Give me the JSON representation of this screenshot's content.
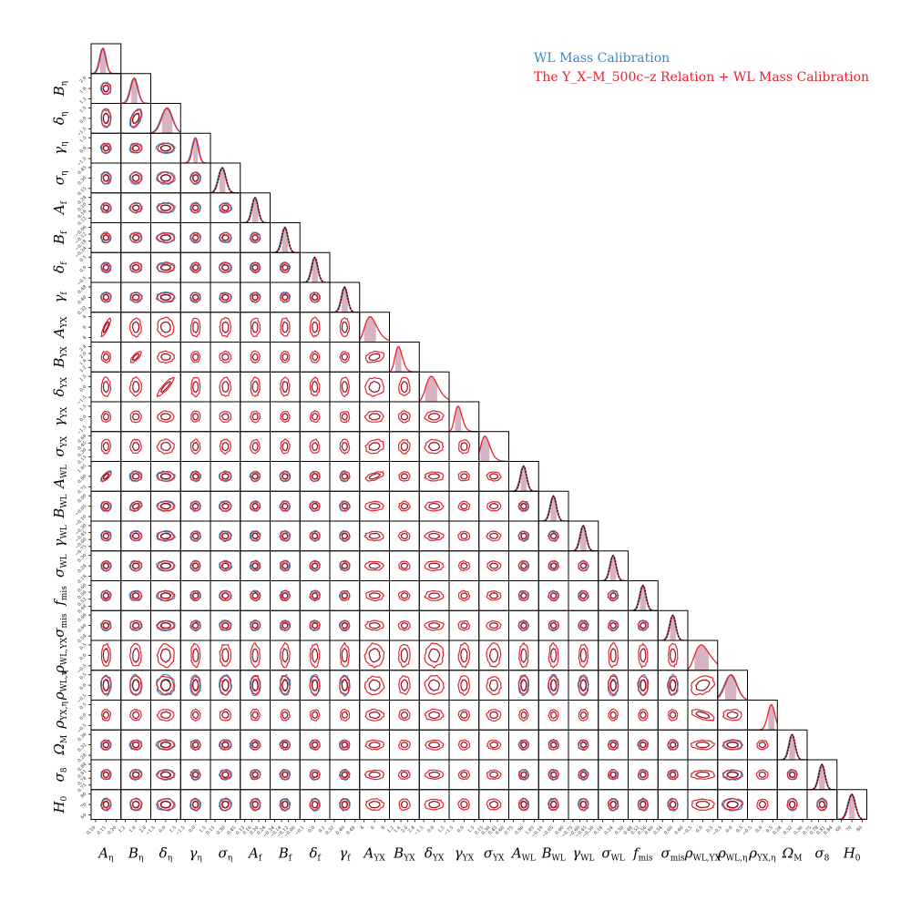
{
  "chart_data": {
    "type": "corner",
    "legend": {
      "placement": "top-right",
      "entries": [
        {
          "name": "WL Mass Calibration",
          "color": "#3d87c4"
        },
        {
          "name": "The Y_X–M_500c–z Relation + WL Mass Calibration",
          "color": "#e8232b"
        }
      ]
    },
    "series_colors": {
      "wl": "#3d87c4",
      "wl_inner": "#1c3c66",
      "yx": "#e8232b",
      "yx_inner": "#8e1024",
      "shade": "#c99aae",
      "prior": "#000000"
    },
    "parameters": [
      {
        "sym": "A",
        "sub": "η",
        "ticks": [
          "0.10",
          "0.15",
          "0.20"
        ],
        "wl": true,
        "prior": false
      },
      {
        "sym": "B",
        "sub": "η",
        "ticks": [
          "1.2",
          "1.6",
          "2.0"
        ],
        "wl": true,
        "prior": false
      },
      {
        "sym": "δ",
        "sub": "η",
        "ticks": [
          "−1.5",
          "0.0",
          "1.5"
        ],
        "wl": true,
        "prior": false
      },
      {
        "sym": "γ",
        "sub": "η",
        "ticks": [
          "−1.5",
          "0.0",
          "1.5"
        ],
        "wl": true,
        "prior": false
      },
      {
        "sym": "σ",
        "sub": "η",
        "ticks": [
          "0.15",
          "0.30",
          "0.45"
        ],
        "wl": true,
        "prior": true
      },
      {
        "sym": "A",
        "sub": "f",
        "ticks": [
          "0.12",
          "0.16",
          "0.20",
          "0.24"
        ],
        "wl": true,
        "prior": true
      },
      {
        "sym": "B",
        "sub": "f",
        "ticks": [
          "−0.24",
          "−0.18",
          "−0.12",
          "−0.06"
        ],
        "wl": true,
        "prior": true
      },
      {
        "sym": "δ",
        "sub": "f",
        "ticks": [
          "−0.1",
          "0.0",
          "0.1"
        ],
        "wl": true,
        "prior": true
      },
      {
        "sym": "γ",
        "sub": "f",
        "ticks": [
          "0.32",
          "0.40",
          "0.48"
        ],
        "wl": true,
        "prior": true
      },
      {
        "sym": "A",
        "sub": "YX",
        "ticks": [
          "4",
          "6",
          "8"
        ],
        "wl": false,
        "prior": false
      },
      {
        "sym": "B",
        "sub": "YX",
        "ticks": [
          "1.2",
          "1.6",
          "2.0",
          "2.4"
        ],
        "wl": false,
        "prior": false
      },
      {
        "sym": "δ",
        "sub": "YX",
        "ticks": [
          "−1.5",
          "0.0",
          "1.5"
        ],
        "wl": false,
        "prior": false
      },
      {
        "sym": "γ",
        "sub": "YX",
        "ticks": [
          "−1.5",
          "0.0",
          "1.5"
        ],
        "wl": false,
        "prior": false
      },
      {
        "sym": "σ",
        "sub": "YX",
        "ticks": [
          "0.15",
          "0.30",
          "0.45",
          "0.60"
        ],
        "wl": false,
        "prior": false
      },
      {
        "sym": "A",
        "sub": "WL",
        "ticks": [
          "0.75",
          "0.90",
          "1.05"
        ],
        "wl": true,
        "prior": true
      },
      {
        "sym": "B",
        "sub": "WL",
        "ticks": [
          "−0.10",
          "−0.05",
          "0.00"
        ],
        "wl": true,
        "prior": true
      },
      {
        "sym": "γ",
        "sub": "WL",
        "ticks": [
          "−0.75",
          "−0.60",
          "−0.45",
          "−0.30"
        ],
        "wl": true,
        "prior": true
      },
      {
        "sym": "σ",
        "sub": "WL",
        "ticks": [
          "0.18",
          "0.24",
          "0.30"
        ],
        "wl": true,
        "prior": true
      },
      {
        "sym": "f",
        "sub": "mis",
        "ticks": [
          "0.48",
          "0.52",
          "0.56",
          "0.60"
        ],
        "wl": true,
        "prior": true
      },
      {
        "sym": "σ",
        "sub": "mis",
        "ticks": [
          "0.54",
          "0.60",
          "0.66"
        ],
        "wl": true,
        "prior": true
      },
      {
        "sym": "ρ",
        "sub": "WL,YX",
        "ticks": [
          "−0.5",
          "0.0",
          "0.5"
        ],
        "wl": false,
        "prior": false
      },
      {
        "sym": "ρ",
        "sub": "WL,η",
        "ticks": [
          "−0.5",
          "0.0",
          "0.5"
        ],
        "wl": true,
        "prior": false
      },
      {
        "sym": "ρ",
        "sub": "YX,η",
        "ticks": [
          "−0.5",
          "0.0",
          "0.5"
        ],
        "wl": false,
        "prior": false
      },
      {
        "sym": "Ω",
        "sub": "M",
        "ticks": [
          "0.28",
          "0.32",
          "0.36"
        ],
        "wl": true,
        "prior": true
      },
      {
        "sym": "σ",
        "sub": "8",
        "ticks": [
          "0.75",
          "0.78",
          "0.81",
          "0.84"
        ],
        "wl": true,
        "prior": true
      },
      {
        "sym": "H",
        "sub": "0",
        "ticks": [
          "60",
          "70",
          "80"
        ],
        "wl": true,
        "prior": true
      }
    ]
  }
}
